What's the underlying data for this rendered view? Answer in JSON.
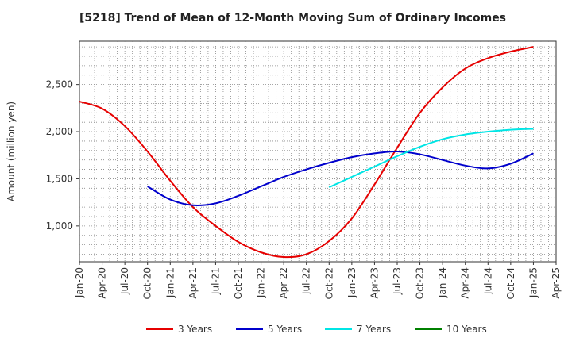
{
  "chart_data": {
    "type": "line",
    "title": "[5218]  Trend of Mean of 12-Month Moving Sum of Ordinary Incomes",
    "ylabel": "Amount (million yen)",
    "xlabel": "",
    "x_ticks": [
      "Jan-20",
      "Apr-20",
      "Jul-20",
      "Oct-20",
      "Jan-21",
      "Apr-21",
      "Jul-21",
      "Oct-21",
      "Jan-22",
      "Apr-22",
      "Jul-22",
      "Oct-22",
      "Jan-23",
      "Apr-23",
      "Jul-23",
      "Oct-23",
      "Jan-24",
      "Apr-24",
      "Jul-24",
      "Oct-24",
      "Jan-25",
      "Apr-25"
    ],
    "y_ticks": [
      1000,
      1500,
      2000,
      2500
    ],
    "y_tick_labels": [
      "1,000",
      "1,500",
      "2,000",
      "2,500"
    ],
    "ylim": [
      620,
      2960
    ],
    "grid": true,
    "legend_position": "bottom",
    "series": [
      {
        "name": "3 Years",
        "color": "#e60000",
        "x": [
          "2020-01",
          "2020-04",
          "2020-07",
          "2020-10",
          "2021-01",
          "2021-04",
          "2021-07",
          "2021-10",
          "2022-01",
          "2022-04",
          "2022-07",
          "2022-10",
          "2023-01",
          "2023-04",
          "2023-07",
          "2023-10",
          "2024-01",
          "2024-04",
          "2024-07",
          "2024-10",
          "2025-01"
        ],
        "y": [
          2320,
          2245,
          2060,
          1790,
          1480,
          1200,
          1000,
          830,
          720,
          670,
          700,
          840,
          1080,
          1440,
          1830,
          2200,
          2470,
          2670,
          2780,
          2850,
          2900
        ]
      },
      {
        "name": "5 Years",
        "color": "#0000cc",
        "x": [
          "2020-10",
          "2021-01",
          "2021-04",
          "2021-07",
          "2021-10",
          "2022-01",
          "2022-04",
          "2022-07",
          "2022-10",
          "2023-01",
          "2023-04",
          "2023-07",
          "2023-10",
          "2024-01",
          "2024-04",
          "2024-07",
          "2024-10",
          "2025-01"
        ],
        "y": [
          1420,
          1280,
          1220,
          1240,
          1320,
          1420,
          1520,
          1600,
          1670,
          1730,
          1770,
          1790,
          1760,
          1700,
          1640,
          1610,
          1660,
          1770
        ]
      },
      {
        "name": "7 Years",
        "color": "#00e5e5",
        "x": [
          "2022-10",
          "2023-01",
          "2023-04",
          "2023-07",
          "2023-10",
          "2024-01",
          "2024-04",
          "2024-07",
          "2024-10",
          "2025-01"
        ],
        "y": [
          1410,
          1520,
          1630,
          1740,
          1840,
          1920,
          1970,
          2000,
          2020,
          2030
        ]
      },
      {
        "name": "10 Years",
        "color": "#008000",
        "x": [],
        "y": []
      }
    ]
  }
}
